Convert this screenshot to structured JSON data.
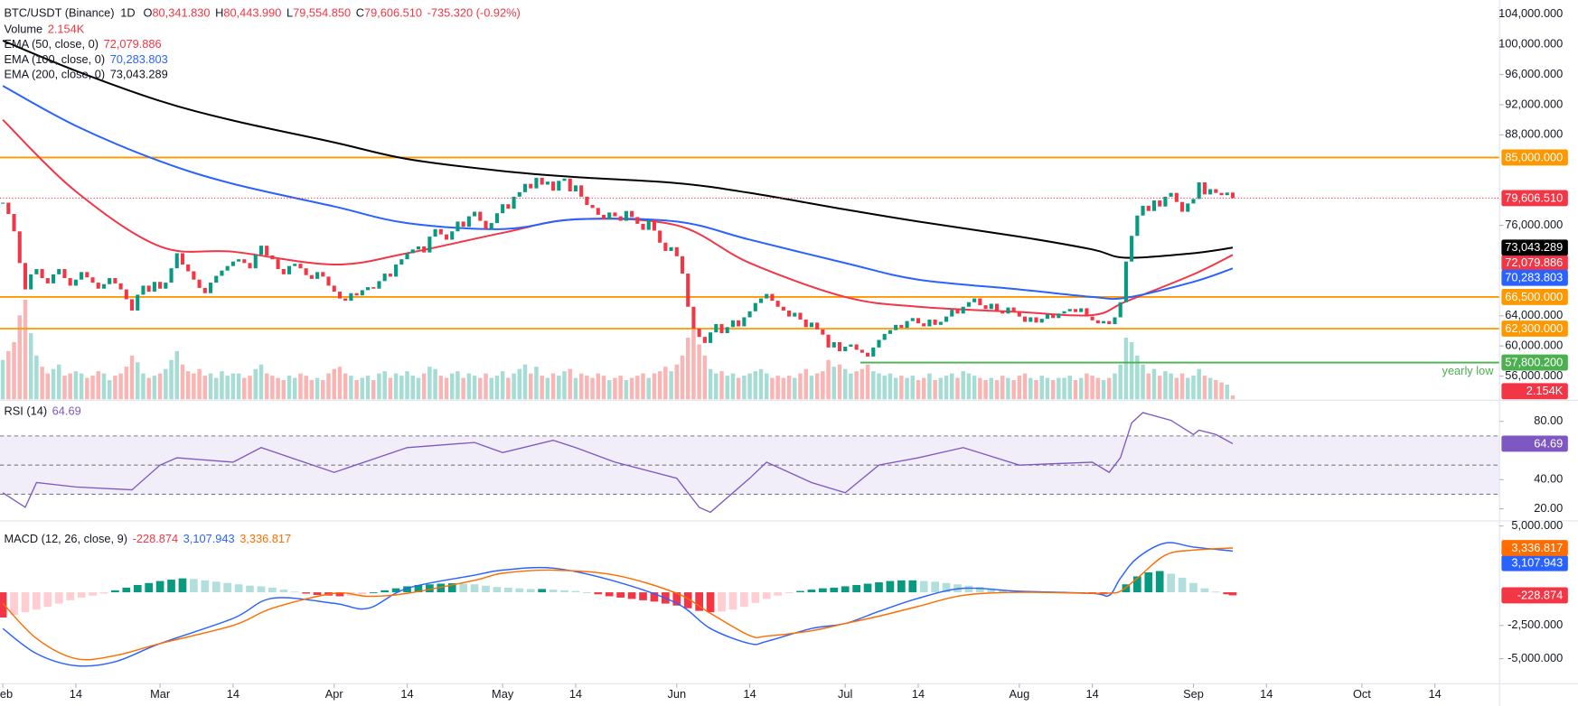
{
  "chart_data": {
    "type": "candlestick",
    "title": "BTC/USDT (Binance)",
    "interval": "1D",
    "ohlc": [
      {
        "label": "O",
        "value": "80,341.830"
      },
      {
        "label": "H",
        "value": "80,443.990"
      },
      {
        "label": "L",
        "value": "79,554.850"
      },
      {
        "label": "C",
        "value": "79,606.510"
      }
    ],
    "change": "-735.320 (-0.92%)",
    "xlim": [
      -0.5,
      266.5
    ],
    "xticks": [
      {
        "value": 0,
        "label": "Feb"
      },
      {
        "value": 13,
        "label": "14"
      },
      {
        "value": 28,
        "label": "Mar"
      },
      {
        "value": 41,
        "label": "14"
      },
      {
        "value": 59,
        "label": "Apr"
      },
      {
        "value": 72,
        "label": "14"
      },
      {
        "value": 89,
        "label": "May"
      },
      {
        "value": 102,
        "label": "14"
      },
      {
        "value": 120,
        "label": "Jun"
      },
      {
        "value": 133,
        "label": "14"
      },
      {
        "value": 150,
        "label": "Jul"
      },
      {
        "value": 163,
        "label": "14"
      },
      {
        "value": 181,
        "label": "Aug"
      },
      {
        "value": 194,
        "label": "14"
      },
      {
        "value": 212,
        "label": "Sep"
      },
      {
        "value": 225,
        "label": "14"
      },
      {
        "value": 242,
        "label": "Oct"
      },
      {
        "value": 255,
        "label": "14"
      }
    ],
    "price": {
      "ylim": [
        52800,
        105867
      ],
      "yticks": [
        {
          "value": 104000,
          "label": "104,000.000"
        },
        {
          "value": 100000,
          "label": "100,000.000"
        },
        {
          "value": 96000,
          "label": "96,000.000"
        },
        {
          "value": 92000,
          "label": "92,000.000"
        },
        {
          "value": 88000,
          "label": "88,000.000"
        },
        {
          "value": 76000,
          "label": "76,000.000"
        },
        {
          "value": 64000,
          "label": "64,000.000"
        },
        {
          "value": 60000,
          "label": "60,000.000"
        },
        {
          "value": 56000,
          "label": "56,000.000"
        }
      ],
      "color_up": "#089981",
      "color_down": "#f23645",
      "last_label": "79,606.510",
      "close": [
        79000,
        77500,
        75200,
        71000,
        67500,
        69500,
        70200,
        69000,
        68300,
        69500,
        70200,
        69000,
        68000,
        68800,
        69800,
        69100,
        68400,
        67600,
        68200,
        69000,
        68300,
        67500,
        66200,
        64700,
        66800,
        68000,
        67200,
        68500,
        67600,
        68400,
        70300,
        72300,
        70800,
        69900,
        68800,
        67700,
        67000,
        68400,
        69300,
        70000,
        70600,
        71200,
        71500,
        71000,
        70300,
        72100,
        73300,
        72000,
        71500,
        70200,
        69500,
        70600,
        70900,
        70300,
        69400,
        68900,
        69800,
        69200,
        68000,
        67200,
        66300,
        66000,
        67000,
        66700,
        67400,
        67800,
        67600,
        68600,
        69600,
        69200,
        70800,
        71500,
        72300,
        72800,
        73200,
        72400,
        74500,
        75500,
        74800,
        74100,
        75200,
        76500,
        75800,
        77200,
        77800,
        76600,
        75500,
        76300,
        77600,
        78800,
        78200,
        79800,
        80400,
        81500,
        80900,
        82300,
        81400,
        81800,
        80600,
        81900,
        82200,
        80500,
        81300,
        79800,
        78700,
        78300,
        77400,
        76800,
        77700,
        77200,
        76600,
        77900,
        77100,
        76200,
        75400,
        76700,
        75300,
        73700,
        72600,
        73100,
        71900,
        69600,
        65200,
        62300,
        61200,
        60400,
        61800,
        62900,
        61700,
        62500,
        63400,
        62600,
        63800,
        64600,
        65700,
        66300,
        66900,
        66000,
        65200,
        64700,
        63900,
        64400,
        63500,
        62500,
        63100,
        62200,
        61500,
        59800,
        60500,
        59300,
        59900,
        60200,
        59500,
        59100,
        58600,
        59800,
        60800,
        61600,
        62100,
        62800,
        62400,
        63300,
        63700,
        63000,
        62600,
        63500,
        62800,
        63200,
        63900,
        64800,
        64300,
        65200,
        65800,
        66300,
        65400,
        64900,
        65600,
        64700,
        64300,
        65100,
        64600,
        63900,
        63200,
        63800,
        63100,
        63600,
        64200,
        63700,
        64300,
        64600,
        64900,
        64500,
        65000,
        63900,
        63400,
        63000,
        63300,
        62900,
        63800,
        65800,
        71200,
        74600,
        77300,
        78600,
        77900,
        79300,
        78500,
        79800,
        80300,
        79100,
        77800,
        78900,
        79500,
        81700,
        80100,
        80800,
        80300,
        80000,
        80341.83,
        79606.51
      ]
    },
    "volume": {
      "name": "Volume",
      "last_label": "2.154K",
      "color_up": "#a5dcd4",
      "color_down": "#f9b4b4",
      "values": [
        18,
        22,
        26,
        38,
        45,
        30,
        20,
        15,
        12,
        14,
        16,
        11,
        12,
        13,
        12,
        10,
        11,
        13,
        12,
        9,
        11,
        12,
        15,
        20,
        17,
        12,
        10,
        11,
        12,
        14,
        18,
        22,
        16,
        13,
        12,
        14,
        11,
        12,
        10,
        13,
        11,
        12,
        12,
        10,
        11,
        14,
        16,
        12,
        11,
        10,
        9,
        11,
        10,
        12,
        11,
        9,
        10,
        9,
        12,
        14,
        15,
        12,
        11,
        9,
        10,
        11,
        9,
        12,
        13,
        10,
        12,
        11,
        13,
        11,
        10,
        12,
        15,
        14,
        11,
        10,
        12,
        13,
        10,
        12,
        11,
        10,
        12,
        10,
        11,
        13,
        10,
        12,
        14,
        16,
        12,
        15,
        11,
        10,
        12,
        11,
        13,
        14,
        10,
        12,
        11,
        10,
        12,
        11,
        9,
        10,
        11,
        9,
        10,
        11,
        12,
        10,
        12,
        13,
        15,
        13,
        16,
        20,
        28,
        32,
        25,
        20,
        14,
        12,
        13,
        11,
        12,
        10,
        11,
        12,
        13,
        14,
        12,
        10,
        11,
        10,
        11,
        10,
        12,
        14,
        11,
        12,
        13,
        18,
        15,
        16,
        14,
        12,
        13,
        14,
        16,
        13,
        12,
        11,
        12,
        10,
        11,
        10,
        11,
        9,
        10,
        12,
        9,
        10,
        11,
        12,
        10,
        13,
        12,
        11,
        10,
        9,
        10,
        9,
        11,
        10,
        9,
        11,
        12,
        10,
        9,
        11,
        10,
        9,
        10,
        10,
        11,
        9,
        10,
        12,
        11,
        10,
        9,
        10,
        12,
        16,
        28,
        26,
        20,
        16,
        12,
        14,
        11,
        13,
        12,
        10,
        12,
        10,
        11,
        14,
        11,
        10,
        9,
        8,
        7,
        2.154
      ]
    },
    "emas": [
      {
        "name": "EMA (50, close, 0)",
        "color": "#f23645",
        "last_label": "72,079.886",
        "x": [
          0,
          13,
          28,
          41,
          59,
          72,
          89,
          102,
          120,
          133,
          150,
          163,
          181,
          194,
          200,
          212,
          219
        ],
        "values": [
          90000,
          80500,
          73200,
          72500,
          70800,
          72300,
          75000,
          76800,
          76000,
          71000,
          66500,
          65200,
          64500,
          64100,
          65900,
          69500,
          72079.886
        ]
      },
      {
        "name": "EMA (100, close, 0)",
        "color": "#2962ff",
        "last_label": "70,283.803",
        "x": [
          0,
          13,
          28,
          41,
          59,
          72,
          89,
          102,
          120,
          133,
          150,
          163,
          181,
          194,
          200,
          212,
          219
        ],
        "values": [
          94500,
          89200,
          84500,
          81500,
          78500,
          76300,
          75500,
          76800,
          76500,
          74100,
          71000,
          68800,
          67500,
          66500,
          66400,
          68500,
          70283.803
        ]
      },
      {
        "name": "EMA (200, close, 0)",
        "color": "#000000",
        "last_label": "73,043.289",
        "x": [
          0,
          13,
          28,
          41,
          59,
          72,
          89,
          102,
          120,
          133,
          150,
          163,
          181,
          194,
          200,
          212,
          219
        ],
        "values": [
          100500,
          96500,
          92500,
          89900,
          87000,
          84800,
          83200,
          82400,
          81600,
          80300,
          78100,
          76500,
          74500,
          72800,
          71700,
          72300,
          73043.289
        ]
      }
    ],
    "levels": [
      {
        "value": 85000,
        "label": "85,000.000",
        "color": "#ff9800"
      },
      {
        "value": 66500,
        "label": "66,500.000",
        "color": "#ff9800"
      },
      {
        "value": 62300,
        "label": "62,300.000",
        "color": "#ff9800"
      },
      {
        "value": 57800.2,
        "label": "57,800.200",
        "color": "#4caf50",
        "x_start": 152.7,
        "note": "yearly low"
      }
    ],
    "rsi": {
      "name": "RSI (14)",
      "color": "#7e57c2",
      "last_label": "64.69",
      "ylim": [
        11.7,
        94.5
      ],
      "yticks": [
        {
          "value": 80,
          "label": "80.00"
        },
        {
          "value": 40,
          "label": "40.00"
        },
        {
          "value": 20,
          "label": "20.00"
        }
      ],
      "bands": [
        70,
        50,
        30
      ],
      "x": [
        0,
        4,
        6,
        13,
        23,
        28,
        31,
        41,
        46,
        59,
        72,
        84,
        89,
        98,
        102,
        109,
        120,
        124,
        126,
        133,
        136,
        144,
        150,
        156,
        163,
        171,
        181,
        194,
        197,
        199,
        201,
        203,
        208,
        212,
        213,
        216,
        219
      ],
      "values": [
        31,
        21,
        38,
        35,
        33,
        50,
        55,
        52,
        62,
        45,
        62,
        65.5,
        58.6,
        67,
        62,
        52,
        41,
        21,
        17.6,
        41,
        52,
        38,
        31,
        50,
        55,
        62,
        50,
        52,
        45,
        55,
        79,
        86,
        80.7,
        71,
        74,
        71,
        64.69
      ]
    },
    "macd": {
      "name": "MACD (12, 26, close, 9)",
      "ylim": [
        -6890,
        5380
      ],
      "yticks": [
        {
          "value": 5000,
          "label": "5,000.000"
        },
        {
          "value": -2500,
          "label": "-2,500.000"
        },
        {
          "value": -5000,
          "label": "-5,000.000"
        }
      ],
      "x": [
        0,
        6,
        13,
        20,
        28,
        41,
        48,
        59,
        65,
        72,
        84,
        89,
        98,
        109,
        120,
        126,
        133,
        136,
        144,
        150,
        156,
        163,
        171,
        181,
        194,
        197,
        199,
        202,
        207,
        212,
        219
      ],
      "series": [
        {
          "name": "histogram",
          "last_label": "-228.874",
          "color": "#f23645"
        },
        {
          "name": "macd",
          "color": "#2962ff",
          "last_label": "3,107.943",
          "values": [
            -2730,
            -4620,
            -5530,
            -5230,
            -3860,
            -1970,
            -450,
            -830,
            -1210,
            300,
            1290,
            1670,
            1820,
            830,
            -830,
            -2730,
            -3860,
            -3700,
            -2730,
            -2350,
            -1440,
            -450,
            300,
            80,
            -80,
            -230,
            1060,
            2580,
            3710,
            3410,
            3107.943
          ]
        },
        {
          "name": "signal",
          "color": "#ff6d00",
          "last_label": "3,336.817",
          "values": [
            -830,
            -3480,
            -5000,
            -4770,
            -3860,
            -2500,
            -1200,
            -80,
            -300,
            -80,
            900,
            1440,
            1670,
            1290,
            -80,
            -1590,
            -3260,
            -3300,
            -2900,
            -2350,
            -1800,
            -1060,
            -230,
            0,
            -80,
            -60,
            80,
            1060,
            2800,
            3180,
            3336.817
          ]
        }
      ],
      "hist_x": [
        0,
        2,
        4,
        6,
        8,
        10,
        12,
        14,
        16,
        18,
        20,
        22,
        24,
        26,
        28,
        30,
        32,
        34,
        36,
        38,
        40,
        42,
        44,
        46,
        48,
        50,
        52,
        54,
        56,
        58,
        60,
        62,
        64,
        66,
        68,
        70,
        72,
        74,
        76,
        78,
        80,
        82,
        84,
        86,
        88,
        90,
        92,
        94,
        96,
        98,
        100,
        102,
        104,
        106,
        108,
        110,
        112,
        114,
        116,
        118,
        120,
        122,
        124,
        126,
        128,
        130,
        132,
        134,
        136,
        138,
        140,
        142,
        144,
        146,
        148,
        150,
        152,
        154,
        156,
        158,
        160,
        162,
        164,
        166,
        168,
        170,
        172,
        174,
        176,
        178,
        180,
        182,
        184,
        186,
        188,
        190,
        192,
        194,
        196,
        198,
        200,
        202,
        204,
        206,
        208,
        210,
        212,
        214,
        216,
        218,
        219
      ],
      "hist": [
        -1900,
        -1700,
        -1500,
        -1300,
        -1100,
        -850,
        -600,
        -400,
        -250,
        -100,
        150,
        350,
        550,
        700,
        850,
        950,
        1050,
        1000,
        900,
        800,
        700,
        600,
        500,
        450,
        350,
        200,
        50,
        -100,
        -200,
        -250,
        -300,
        -250,
        -150,
        0,
        150,
        300,
        450,
        550,
        600,
        650,
        680,
        650,
        600,
        500,
        400,
        350,
        300,
        250,
        250,
        200,
        150,
        100,
        0,
        -150,
        -300,
        -400,
        -500,
        -600,
        -700,
        -850,
        -1000,
        -1200,
        -1400,
        -1500,
        -1450,
        -1300,
        -1100,
        -800,
        -500,
        -250,
        -50,
        100,
        200,
        300,
        350,
        450,
        550,
        650,
        750,
        850,
        900,
        900,
        850,
        800,
        700,
        600,
        500,
        400,
        300,
        200,
        150,
        100,
        50,
        50,
        0,
        -50,
        -50,
        -100,
        -150,
        -50,
        600,
        1200,
        1500,
        1600,
        1400,
        1100,
        700,
        300,
        50,
        -150,
        -228.874
      ]
    }
  }
}
